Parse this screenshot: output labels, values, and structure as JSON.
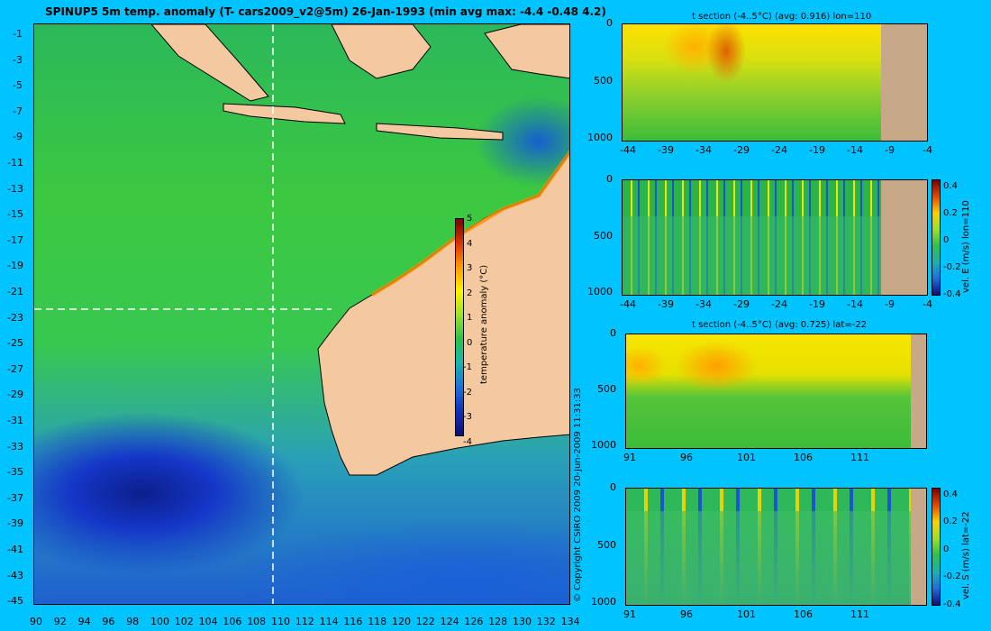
{
  "main_title": "SPINUP5 5m temp. anomaly (T- cars2009_v2@5m) 26-Jan-1993 (min avg max: -4.4 -0.48 4.2)",
  "map": {
    "lat_ticks": [
      "-1",
      "-3",
      "-5",
      "-7",
      "-9",
      "-11",
      "-13",
      "-15",
      "-17",
      "-19",
      "-21",
      "-23",
      "-25",
      "-27",
      "-29",
      "-31",
      "-33",
      "-35",
      "-37",
      "-39",
      "-41",
      "-43",
      "-45"
    ],
    "lon_ticks": [
      "90",
      "92",
      "94",
      "96",
      "98",
      "100",
      "102",
      "104",
      "106",
      "108",
      "110",
      "112",
      "114",
      "116",
      "118",
      "120",
      "122",
      "124",
      "126",
      "128",
      "130",
      "132",
      "134"
    ],
    "colorbar": {
      "label": "temperature anomaly (°C)",
      "ticks": [
        "5",
        "4",
        "3",
        "2",
        "1",
        "0",
        "-1",
        "-2",
        "-3",
        "-4"
      ]
    },
    "section_lines": {
      "lon": "110",
      "lat": "-22"
    },
    "land_color": "#f5c9a0"
  },
  "copyright": "© Copyright CSIRO 2009   20-Jun-2009 11:31:33",
  "panels": [
    {
      "id": "t-lon",
      "title": "t section (-4..5°C) (avg: 0.916) lon=110",
      "y_ticks": [
        "0",
        "500",
        "1000"
      ],
      "x_ticks": [
        "-44",
        "-39",
        "-34",
        "-29",
        "-24",
        "-19",
        "-14",
        "-9",
        "-4"
      ]
    },
    {
      "id": "velE-lon",
      "title": "",
      "y_ticks": [
        "0",
        "500",
        "1000"
      ],
      "x_ticks": [
        "-44",
        "-39",
        "-34",
        "-29",
        "-24",
        "-19",
        "-14",
        "-9",
        "-4"
      ],
      "colorbar": {
        "label": "vel. E (m/s) lon=110",
        "ticks": [
          "0.4",
          "0.2",
          "0",
          "-0.2",
          "-0.4"
        ]
      }
    },
    {
      "id": "t-lat",
      "title": "t section (-4..5°C) (avg: 0.725) lat=-22",
      "y_ticks": [
        "0",
        "500",
        "1000"
      ],
      "x_ticks": [
        "91",
        "96",
        "101",
        "106",
        "111"
      ]
    },
    {
      "id": "velS-lat",
      "title": "",
      "y_ticks": [
        "0",
        "500",
        "1000"
      ],
      "x_ticks": [
        "91",
        "96",
        "101",
        "106",
        "111"
      ],
      "colorbar": {
        "label": "vel. S (m/s) lat=-22",
        "ticks": [
          "0.4",
          "0.2",
          "0",
          "-0.2",
          "-0.4"
        ]
      }
    }
  ]
}
